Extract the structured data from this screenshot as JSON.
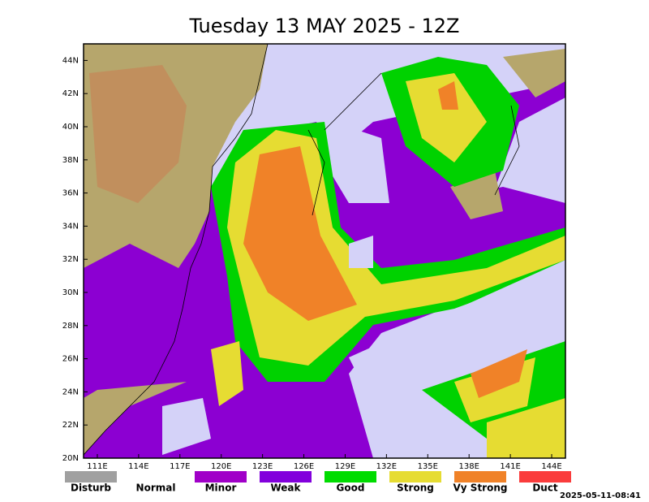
{
  "title": "Tuesday 13 MAY 2025 - 12Z",
  "map": {
    "xlim": [
      110,
      145
    ],
    "ylim": [
      20,
      45
    ],
    "xticks": [
      {
        "value": 111,
        "label": "111E"
      },
      {
        "value": 114,
        "label": "114E"
      },
      {
        "value": 117,
        "label": "117E"
      },
      {
        "value": 120,
        "label": "120E"
      },
      {
        "value": 123,
        "label": "123E"
      },
      {
        "value": 126,
        "label": "126E"
      },
      {
        "value": 129,
        "label": "129E"
      },
      {
        "value": 132,
        "label": "132E"
      },
      {
        "value": 135,
        "label": "135E"
      },
      {
        "value": 138,
        "label": "138E"
      },
      {
        "value": 141,
        "label": "141E"
      },
      {
        "value": 144,
        "label": "144E"
      }
    ],
    "yticks": [
      {
        "value": 20,
        "label": "20N"
      },
      {
        "value": 22,
        "label": "22N"
      },
      {
        "value": 24,
        "label": "24N"
      },
      {
        "value": 26,
        "label": "26N"
      },
      {
        "value": 28,
        "label": "28N"
      },
      {
        "value": 30,
        "label": "30N"
      },
      {
        "value": 32,
        "label": "32N"
      },
      {
        "value": 34,
        "label": "34N"
      },
      {
        "value": 36,
        "label": "36N"
      },
      {
        "value": 38,
        "label": "38N"
      },
      {
        "value": 40,
        "label": "40N"
      },
      {
        "value": 42,
        "label": "42N"
      },
      {
        "value": 44,
        "label": "44N"
      }
    ]
  },
  "legend": [
    {
      "label": "Disturb",
      "color": "#a0a0a0"
    },
    {
      "label": "Normal",
      "color": "#ffffff"
    },
    {
      "label": "Minor",
      "color": "#a000c8"
    },
    {
      "label": "Weak",
      "color": "#8200dc"
    },
    {
      "label": "Good",
      "color": "#00dc00"
    },
    {
      "label": "Strong",
      "color": "#e6dc32"
    },
    {
      "label": "Vy Strong",
      "color": "#f08228"
    },
    {
      "label": "Duct",
      "color": "#fa3c3c"
    }
  ],
  "timestamp": "2025-05-11-08:41"
}
